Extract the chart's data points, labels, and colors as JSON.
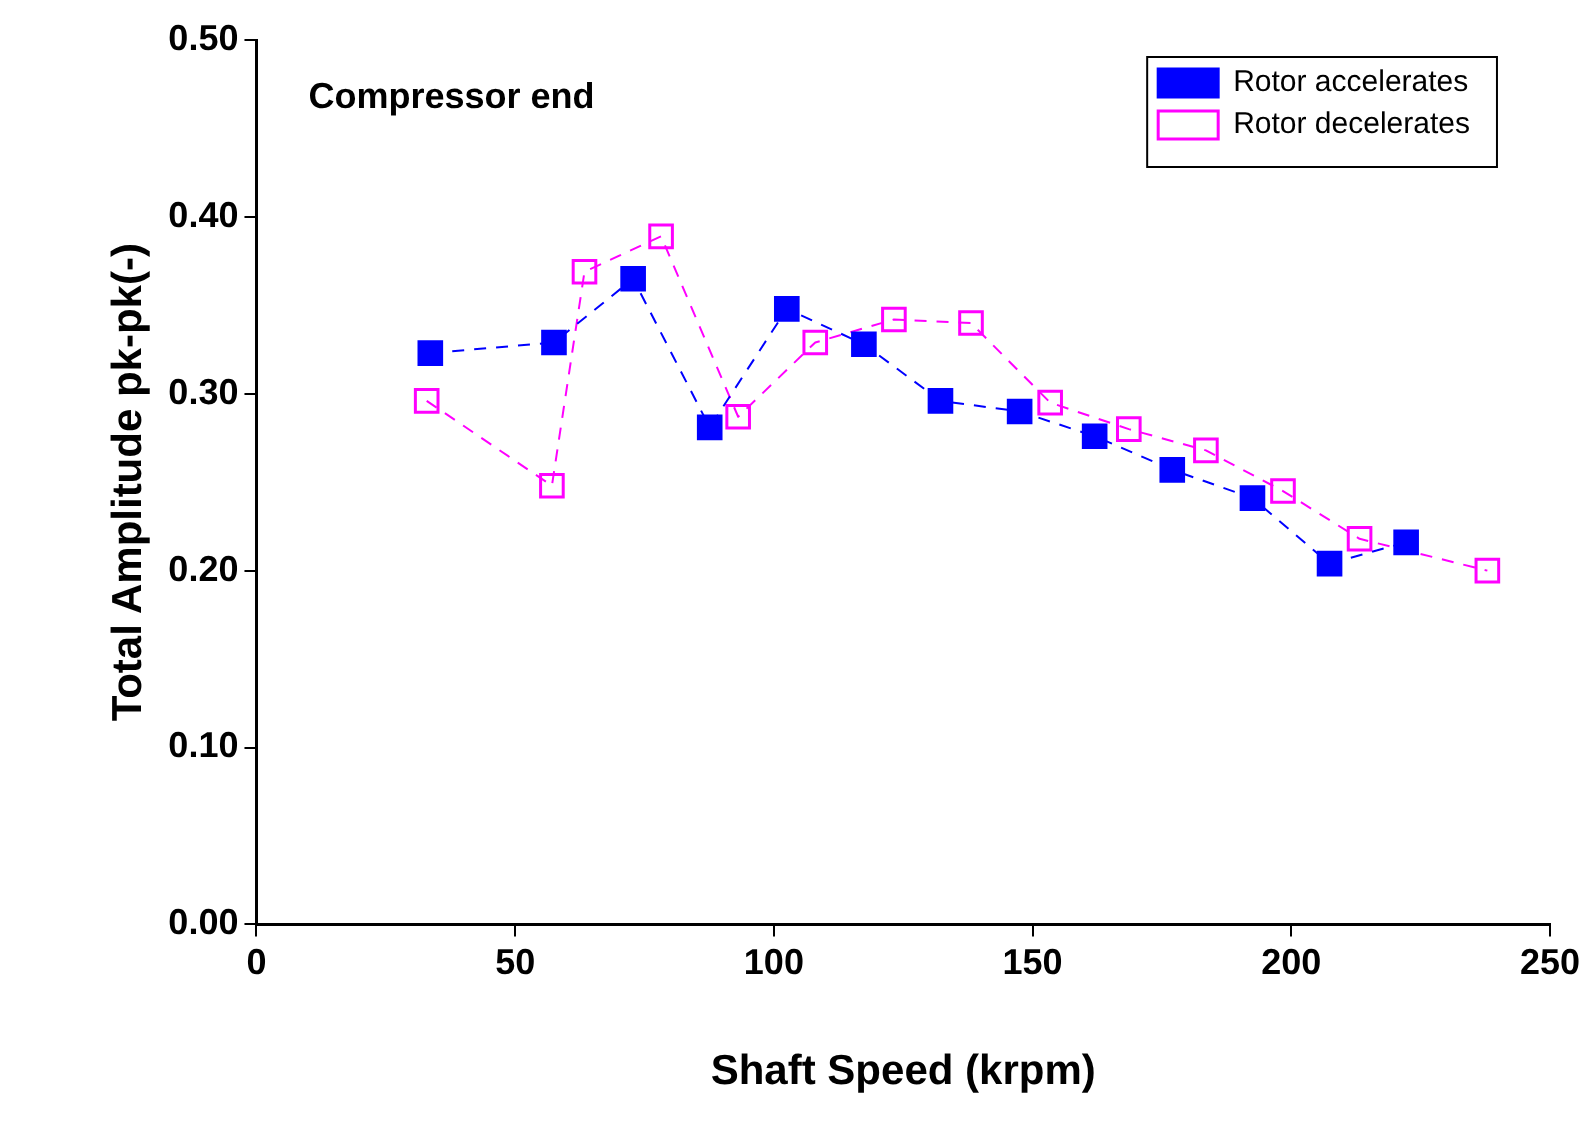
{
  "chart_data": {
    "type": "line",
    "xlabel": "Shaft Speed (krpm)",
    "ylabel": "Total Amplitude pk-pk(-)",
    "annotations": [
      "Compressor end"
    ],
    "xlim": [
      0,
      250
    ],
    "xticks": [
      0,
      50,
      100,
      150,
      200,
      250
    ],
    "ylim": [
      0,
      0.5
    ],
    "yticks": [
      {
        "value": 0,
        "label": "0.00"
      },
      {
        "value": 0.1,
        "label": "0.10"
      },
      {
        "value": 0.2,
        "label": "0.20"
      },
      {
        "value": 0.3,
        "label": "0.30"
      },
      {
        "value": 0.4,
        "label": "0.40"
      },
      {
        "value": 0.5,
        "label": "0.50"
      }
    ],
    "grid": false,
    "legend": "top right",
    "marker": "square",
    "line_style": "dashed",
    "series": [
      {
        "name": "Rotor accelerates",
        "color": "#0000ff",
        "x": [
          33.6,
          57.5,
          72.8,
          87.6,
          102.5,
          117.4,
          132.2,
          147.5,
          162,
          177,
          192.5,
          207.4,
          222.2
        ],
        "values": [
          0.323,
          0.329,
          0.365,
          0.281,
          0.348,
          0.328,
          0.296,
          0.29,
          0.276,
          0.257,
          0.241,
          0.204,
          0.216
        ]
      },
      {
        "name": "Rotor decelerates",
        "color": "#ff00ff",
        "x": [
          32.9,
          57.1,
          63.4,
          78.2,
          93.1,
          108,
          123.2,
          138.1,
          153.4,
          168.6,
          183.5,
          198.4,
          213.2,
          237.9
        ],
        "values": [
          0.296,
          0.248,
          0.369,
          0.389,
          0.287,
          0.329,
          0.342,
          0.34,
          0.295,
          0.28,
          0.268,
          0.245,
          0.218,
          0.2
        ]
      }
    ]
  }
}
